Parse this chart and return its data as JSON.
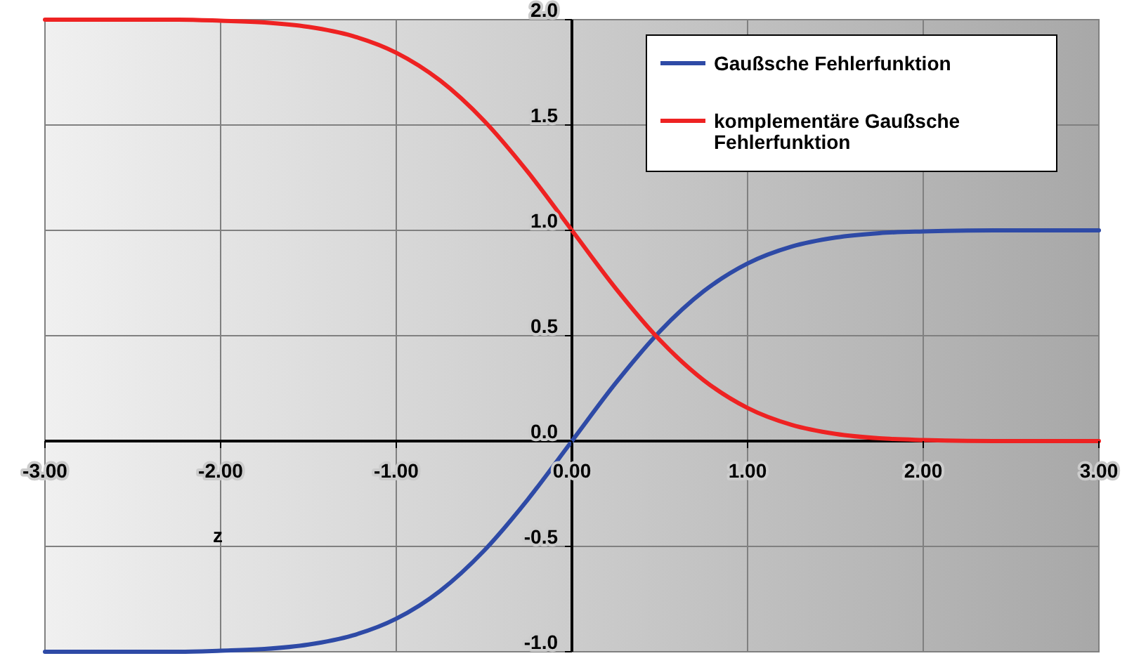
{
  "chart_data": {
    "type": "line",
    "xlabel": "z",
    "x": [
      -3,
      -2.75,
      -2.5,
      -2.25,
      -2,
      -1.75,
      -1.5,
      -1.25,
      -1,
      -0.75,
      -0.5,
      -0.25,
      0,
      0.25,
      0.5,
      0.75,
      1,
      1.25,
      1.5,
      1.75,
      2,
      2.25,
      2.5,
      2.75,
      3
    ],
    "series": [
      {
        "name": "Gaußsche Fehlerfunktion",
        "color": "#2e4aa6",
        "values": [
          -1,
          -1,
          -1,
          -1,
          -0.995,
          -0.987,
          -0.966,
          -0.923,
          -0.843,
          -0.711,
          -0.52,
          -0.276,
          0,
          0.276,
          0.52,
          0.711,
          0.843,
          0.923,
          0.966,
          0.987,
          0.995,
          0.999,
          1,
          1,
          1
        ]
      },
      {
        "name": "komplementäre Gaußsche Fehlerfunktion",
        "color": "#ee2222",
        "values": [
          2,
          2,
          2,
          2,
          1.995,
          1.987,
          1.966,
          1.923,
          1.843,
          1.711,
          1.52,
          1.276,
          1,
          0.724,
          0.48,
          0.289,
          0.157,
          0.077,
          0.034,
          0.013,
          0.005,
          0.001,
          0,
          0,
          0
        ]
      }
    ],
    "xlim": [
      -3,
      3
    ],
    "ylim": [
      -1,
      2
    ],
    "xticks": [
      {
        "value": -3,
        "label": "-3.00"
      },
      {
        "value": -2,
        "label": "-2.00"
      },
      {
        "value": -1,
        "label": "-1.00"
      },
      {
        "value": 0,
        "label": "0.00"
      },
      {
        "value": 1,
        "label": "1.00"
      },
      {
        "value": 2,
        "label": "2.00"
      },
      {
        "value": 3,
        "label": "3.00"
      }
    ],
    "yticks": [
      {
        "value": -1,
        "label": "-1.0"
      },
      {
        "value": -0.5,
        "label": "-0.5"
      },
      {
        "value": 0,
        "label": "0.0"
      },
      {
        "value": 0.5,
        "label": "0.5"
      },
      {
        "value": 1,
        "label": "1.0"
      },
      {
        "value": 1.5,
        "label": "1.5"
      },
      {
        "value": 2,
        "label": "2.0"
      }
    ],
    "grid": true,
    "legend": "top right",
    "marker": "none",
    "line_style": "solid"
  }
}
